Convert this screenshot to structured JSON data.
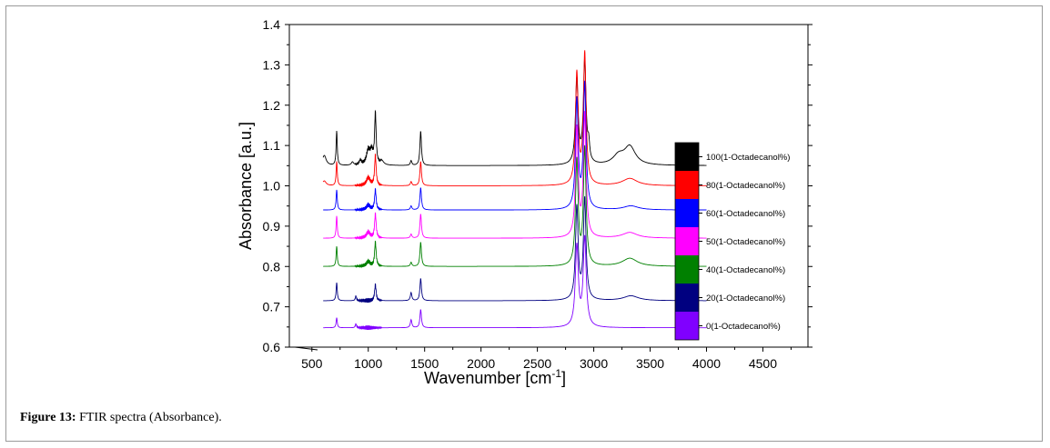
{
  "caption": {
    "label": "Figure 13:",
    "text": " FTIR spectra (Absorbance)."
  },
  "chart_data": {
    "type": "line",
    "title": "",
    "xlabel": "Wavenumber [cm",
    "xlabel_sup": "-1",
    "xlabel_close": "]",
    "ylabel": "Absorbance [a.u.]",
    "xlim": [
      300,
      4900
    ],
    "ylim": [
      0.6,
      1.4
    ],
    "xticks": [
      "500",
      "1000",
      "1500",
      "2000",
      "2500",
      "3000",
      "3500",
      "4000",
      "4500"
    ],
    "yticks": [
      "0.6",
      "0.7",
      "0.8",
      "0.9",
      "1.0",
      "1.1",
      "1.2",
      "1.3",
      "1.4"
    ],
    "x_range": [
      600,
      4000
    ],
    "legend_position": "right",
    "series": [
      {
        "name": "100(1-Octadecanol%)",
        "color": "#000000",
        "baseline": 1.05,
        "peaks": [
          [
            610,
            0.025,
            20
          ],
          [
            720,
            0.085,
            6
          ],
          [
            860,
            0.008,
            12
          ],
          [
            930,
            0.012,
            10
          ],
          [
            1000,
            0.035,
            20
          ],
          [
            1030,
            0.03,
            15
          ],
          [
            1063,
            0.125,
            8
          ],
          [
            1120,
            0.01,
            20
          ],
          [
            1380,
            0.012,
            8
          ],
          [
            1465,
            0.085,
            8
          ],
          [
            2850,
            0.21,
            14
          ],
          [
            2920,
            0.255,
            14
          ],
          [
            2955,
            0.04,
            10
          ],
          [
            3220,
            0.022,
            60
          ],
          [
            3320,
            0.045,
            60
          ]
        ]
      },
      {
        "name": "80(1-Octadecanol%)",
        "color": "#ff0000",
        "baseline": 1.0,
        "peaks": [
          [
            610,
            0.012,
            20
          ],
          [
            720,
            0.06,
            6
          ],
          [
            1000,
            0.02,
            20
          ],
          [
            1063,
            0.075,
            8
          ],
          [
            1380,
            0.01,
            8
          ],
          [
            1465,
            0.06,
            8
          ],
          [
            2850,
            0.275,
            14
          ],
          [
            2920,
            0.325,
            14
          ],
          [
            3320,
            0.018,
            80
          ]
        ]
      },
      {
        "name": "60(1-Octadecanol%)",
        "color": "#0000ff",
        "baseline": 0.94,
        "peaks": [
          [
            720,
            0.05,
            6
          ],
          [
            1000,
            0.012,
            20
          ],
          [
            1063,
            0.05,
            8
          ],
          [
            1380,
            0.01,
            8
          ],
          [
            1465,
            0.055,
            8
          ],
          [
            2850,
            0.27,
            14
          ],
          [
            2920,
            0.31,
            14
          ],
          [
            3330,
            0.01,
            80
          ]
        ]
      },
      {
        "name": "50(1-Octadecanol%)",
        "color": "#ff00ff",
        "baseline": 0.87,
        "peaks": [
          [
            720,
            0.055,
            6
          ],
          [
            1000,
            0.015,
            20
          ],
          [
            1063,
            0.06,
            8
          ],
          [
            1380,
            0.01,
            8
          ],
          [
            1465,
            0.06,
            8
          ],
          [
            2850,
            0.27,
            14
          ],
          [
            2920,
            0.305,
            14
          ],
          [
            3320,
            0.014,
            80
          ]
        ]
      },
      {
        "name": "40(1-Octadecanol%)",
        "color": "#008000",
        "baseline": 0.8,
        "peaks": [
          [
            720,
            0.05,
            6
          ],
          [
            1000,
            0.012,
            20
          ],
          [
            1063,
            0.06,
            8
          ],
          [
            1380,
            0.01,
            8
          ],
          [
            1465,
            0.06,
            8
          ],
          [
            2850,
            0.26,
            14
          ],
          [
            2920,
            0.29,
            14
          ],
          [
            3320,
            0.02,
            80
          ]
        ]
      },
      {
        "name": "20(1-Octadecanol%)",
        "color": "#000080",
        "baseline": 0.715,
        "peaks": [
          [
            720,
            0.045,
            6
          ],
          [
            890,
            0.012,
            6
          ],
          [
            1063,
            0.04,
            8
          ],
          [
            1380,
            0.02,
            8
          ],
          [
            1465,
            0.055,
            8
          ],
          [
            2850,
            0.23,
            14
          ],
          [
            2920,
            0.25,
            14
          ],
          [
            3330,
            0.012,
            80
          ]
        ]
      },
      {
        "name": "0(1-Octadecanol%)",
        "color": "#8000ff",
        "baseline": 0.648,
        "peaks": [
          [
            720,
            0.025,
            6
          ],
          [
            890,
            0.01,
            6
          ],
          [
            1380,
            0.02,
            8
          ],
          [
            1465,
            0.045,
            8
          ],
          [
            2850,
            0.2,
            16
          ],
          [
            2920,
            0.22,
            16
          ]
        ]
      }
    ]
  }
}
